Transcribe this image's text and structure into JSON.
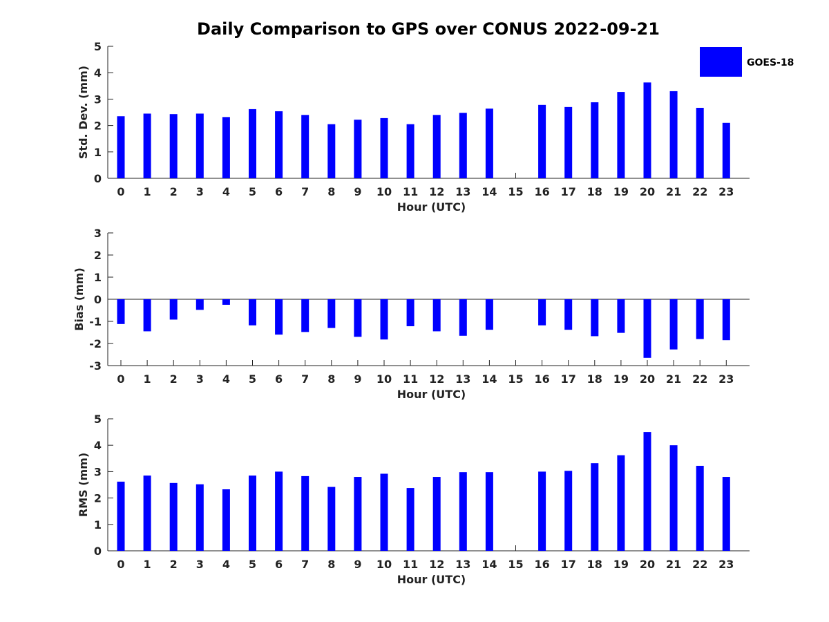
{
  "title": "Daily Comparison to GPS over CONUS 2022-09-21",
  "legend": {
    "label": "GOES-18",
    "color": "#0000ff"
  },
  "chart_data": [
    {
      "type": "bar",
      "title": "Daily Comparison to GPS over CONUS 2022-09-21",
      "xlabel": "Hour (UTC)",
      "ylabel": "Std. Dev. (mm)",
      "categories": [
        "0",
        "1",
        "2",
        "3",
        "4",
        "5",
        "6",
        "7",
        "8",
        "9",
        "10",
        "11",
        "12",
        "13",
        "14",
        "15",
        "16",
        "17",
        "18",
        "19",
        "20",
        "21",
        "22",
        "23"
      ],
      "series": [
        {
          "name": "GOES-18",
          "values": [
            2.35,
            2.45,
            2.43,
            2.45,
            2.32,
            2.62,
            2.54,
            2.4,
            2.05,
            2.22,
            2.28,
            2.05,
            2.4,
            2.48,
            2.64,
            null,
            2.78,
            2.7,
            2.88,
            3.27,
            3.63,
            3.3,
            2.67,
            2.1
          ]
        }
      ],
      "ylim": [
        0,
        5
      ],
      "yticks": [
        "0",
        "1",
        "2",
        "3",
        "4",
        "5"
      ]
    },
    {
      "type": "bar",
      "xlabel": "Hour (UTC)",
      "ylabel": "Bias (mm)",
      "categories": [
        "0",
        "1",
        "2",
        "3",
        "4",
        "5",
        "6",
        "7",
        "8",
        "9",
        "10",
        "11",
        "12",
        "13",
        "14",
        "15",
        "16",
        "17",
        "18",
        "19",
        "20",
        "21",
        "22",
        "23"
      ],
      "series": [
        {
          "name": "GOES-18",
          "values": [
            -1.12,
            -1.45,
            -0.92,
            -0.48,
            -0.25,
            -1.18,
            -1.6,
            -1.48,
            -1.3,
            -1.7,
            -1.82,
            -1.22,
            -1.45,
            -1.65,
            -1.38,
            null,
            -1.18,
            -1.38,
            -1.67,
            -1.52,
            -2.65,
            -2.27,
            -1.8,
            -1.85
          ]
        }
      ],
      "ylim": [
        -3,
        3
      ],
      "yticks": [
        "-3",
        "-2",
        "-1",
        "0",
        "1",
        "2",
        "3"
      ],
      "zero_line": true
    },
    {
      "type": "bar",
      "xlabel": "Hour (UTC)",
      "ylabel": "RMS (mm)",
      "categories": [
        "0",
        "1",
        "2",
        "3",
        "4",
        "5",
        "6",
        "7",
        "8",
        "9",
        "10",
        "11",
        "12",
        "13",
        "14",
        "15",
        "16",
        "17",
        "18",
        "19",
        "20",
        "21",
        "22",
        "23"
      ],
      "series": [
        {
          "name": "GOES-18",
          "values": [
            2.62,
            2.85,
            2.57,
            2.52,
            2.33,
            2.85,
            3.0,
            2.83,
            2.42,
            2.8,
            2.92,
            2.38,
            2.8,
            2.98,
            2.98,
            null,
            3.0,
            3.03,
            3.32,
            3.62,
            4.5,
            4.0,
            3.22,
            2.8
          ]
        }
      ],
      "ylim": [
        0,
        5
      ],
      "yticks": [
        "0",
        "1",
        "2",
        "3",
        "4",
        "5"
      ]
    }
  ]
}
